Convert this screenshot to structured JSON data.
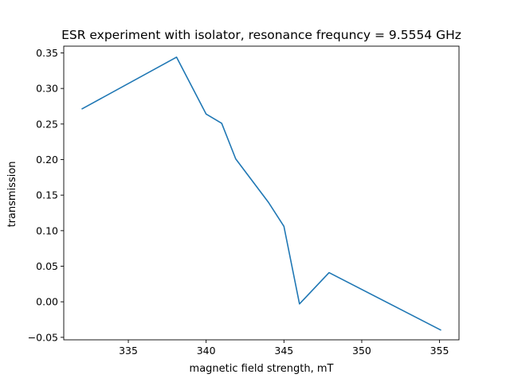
{
  "chart_data": {
    "type": "line",
    "title": "ESR experiment with isolator, resonance frequncy = 9.5554 GHz",
    "xlabel": "magnetic field strength, mT",
    "ylabel": "transmission",
    "xlim": [
      330.85,
      356.25
    ],
    "ylim": [
      -0.0535,
      0.3595
    ],
    "xticks": [
      335,
      340,
      345,
      350,
      355
    ],
    "yticks": [
      -0.05,
      0.0,
      0.05,
      0.1,
      0.15,
      0.2,
      0.25,
      0.3,
      0.35
    ],
    "xtick_labels": [
      "335",
      "340",
      "345",
      "350",
      "355"
    ],
    "ytick_labels": [
      "−0.05",
      "0.00",
      "0.05",
      "0.10",
      "0.15",
      "0.20",
      "0.25",
      "0.30",
      "0.35"
    ],
    "grid": false,
    "series": [
      {
        "color": "#1f77b4",
        "x": [
          332.0,
          338.1,
          340.0,
          341.0,
          341.9,
          344.0,
          345.0,
          346.0,
          347.9,
          355.1
        ],
        "y": [
          0.271,
          0.344,
          0.264,
          0.251,
          0.201,
          0.14,
          0.106,
          -0.003,
          0.041,
          -0.04
        ]
      }
    ]
  }
}
